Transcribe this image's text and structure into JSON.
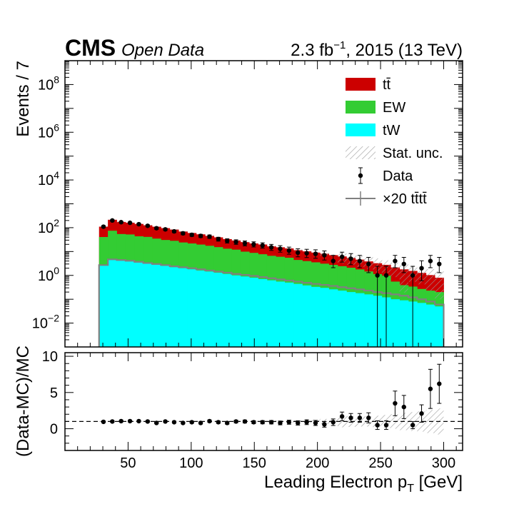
{
  "header": {
    "experiment": "CMS",
    "tag": "Open Data",
    "lumi": "2.3 fb",
    "lumi_sup": "−1",
    "lumi_rest": ", 2015 (13 TeV)"
  },
  "colors": {
    "ttbar": "#cc0000",
    "ew": "#33cc33",
    "tw": "#00ffff",
    "signal": "#808080",
    "data": "#000000",
    "hatch": "#aaaaaa"
  },
  "legend": {
    "placement": "top-right",
    "entries": [
      {
        "key": "ttbar",
        "label": "tt̄"
      },
      {
        "key": "ew",
        "label": "EW"
      },
      {
        "key": "tw",
        "label": "tW"
      },
      {
        "key": "stat",
        "label": "Stat. unc."
      },
      {
        "key": "data",
        "label": "Data"
      },
      {
        "key": "signal",
        "label": "×20 tt̄tt̄"
      }
    ]
  },
  "chart_data": [
    {
      "type": "bar",
      "stacked": true,
      "log_y": true,
      "xlabel": "Leading Electron p",
      "xlabel_sub": "T",
      "xlabel_unit": " [GeV]",
      "ylabel": "Events / 7",
      "xlim": [
        0,
        315
      ],
      "ylim": [
        0.001,
        1000000000.0
      ],
      "x_ticks": [
        50,
        100,
        150,
        200,
        250,
        300
      ],
      "y_ticks": [
        {
          "value": 0.01,
          "base": "10",
          "exp": "−2"
        },
        {
          "value": 1,
          "base": "10",
          "exp": "0"
        },
        {
          "value": 100,
          "base": "10",
          "exp": "2"
        },
        {
          "value": 10000,
          "base": "10",
          "exp": "4"
        },
        {
          "value": 1000000,
          "base": "10",
          "exp": "6"
        },
        {
          "value": 100000000,
          "base": "10",
          "exp": "8"
        }
      ],
      "bin_low": [
        27,
        34,
        41,
        48,
        55,
        62,
        69,
        76,
        83,
        90,
        97,
        104,
        111,
        118,
        125,
        132,
        139,
        146,
        153,
        160,
        167,
        174,
        181,
        188,
        195,
        202,
        209,
        216,
        223,
        230,
        237,
        244,
        251,
        258,
        265,
        272,
        279,
        286,
        293
      ],
      "bin_high": [
        34,
        41,
        48,
        55,
        62,
        69,
        76,
        83,
        90,
        97,
        104,
        111,
        118,
        125,
        132,
        139,
        146,
        153,
        160,
        167,
        174,
        181,
        188,
        195,
        202,
        209,
        216,
        223,
        230,
        237,
        244,
        251,
        258,
        265,
        272,
        279,
        286,
        293,
        300
      ],
      "series": [
        {
          "name": "tW",
          "key": "tw",
          "values": [
            2.6,
            4.5,
            4.2,
            3.9,
            3.5,
            3.1,
            2.8,
            2.5,
            2.2,
            2.0,
            1.8,
            1.6,
            1.45,
            1.3,
            1.15,
            1.0,
            0.9,
            0.8,
            0.7,
            0.62,
            0.55,
            0.5,
            0.44,
            0.38,
            0.33,
            0.3,
            0.26,
            0.23,
            0.2,
            0.18,
            0.16,
            0.14,
            0.12,
            0.1,
            0.09,
            0.08,
            0.07,
            0.06,
            0.05
          ]
        },
        {
          "name": "EW",
          "key": "ew",
          "values": [
            38,
            70,
            50,
            48,
            40,
            38,
            32,
            28,
            26,
            22,
            20,
            18,
            16,
            14,
            12,
            11,
            9,
            8,
            7,
            6,
            5.5,
            5,
            4,
            3.6,
            3.2,
            2.8,
            2.5,
            2.2,
            1.9,
            1.6,
            1.3,
            1.0,
            0.85,
            0.45,
            0.3,
            0.26,
            0.2,
            0.17,
            0.15
          ]
        },
        {
          "name": "tt̄",
          "key": "ttbar",
          "values": [
            70,
            140,
            120,
            110,
            100,
            85,
            75,
            65,
            55,
            45,
            38,
            33,
            28,
            24,
            20,
            17,
            15,
            13,
            12,
            10,
            9,
            8,
            7,
            6.2,
            5.5,
            5,
            4.3,
            3.8,
            3.3,
            2.8,
            2.4,
            2.1,
            1.8,
            1.6,
            1.4,
            1.2,
            1.0,
            0.8,
            0.6
          ]
        },
        {
          "name": "×20 tt̄tt̄",
          "key": "signal",
          "values": [
            2.7,
            4.7,
            4.4,
            4.1,
            3.7,
            3.3,
            3.0,
            2.7,
            2.4,
            2.2,
            2.0,
            1.8,
            1.6,
            1.45,
            1.3,
            1.15,
            1.05,
            0.95,
            0.85,
            0.76,
            0.68,
            0.61,
            0.55,
            0.49,
            0.44,
            0.4,
            0.36,
            0.32,
            0.29,
            0.26,
            0.23,
            0.2,
            0.18,
            0.16,
            0.14,
            0.12,
            0.1,
            0.08,
            0.06
          ]
        },
        {
          "name": "Data",
          "key": "data",
          "x": [
            30.5,
            37.5,
            44.5,
            51.5,
            58.5,
            65.5,
            72.5,
            79.5,
            86.5,
            93.5,
            100.5,
            107.5,
            114.5,
            121.5,
            128.5,
            135.5,
            142.5,
            149.5,
            156.5,
            163.5,
            170.5,
            177.5,
            184.5,
            191.5,
            198.5,
            205.5,
            212.5,
            219.5,
            226.5,
            233.5,
            240.5,
            247.5,
            254.5,
            261.5,
            268.5,
            275.5,
            282.5,
            289.5,
            296.5
          ],
          "values": [
            110,
            200,
            170,
            160,
            140,
            120,
            95,
            85,
            70,
            58,
            50,
            45,
            42,
            33,
            28,
            25,
            22,
            20,
            18,
            15,
            13,
            11,
            9,
            8.5,
            8,
            7,
            4,
            6,
            5,
            4,
            3,
            1,
            1,
            4,
            3,
            1,
            2,
            4,
            3
          ],
          "err_low": [
            10,
            14,
            13,
            12,
            12,
            11,
            10,
            9,
            8,
            7.5,
            7,
            6.5,
            6.5,
            5.7,
            5.3,
            5,
            4.7,
            4.5,
            4.2,
            3.9,
            3.6,
            3.3,
            3,
            2.9,
            2.8,
            2.6,
            1.9,
            2.4,
            2.2,
            1.9,
            1.7,
            0.999,
            0.999,
            1.9,
            1.7,
            0.999,
            1.4,
            1.9,
            1.7
          ],
          "err_high": [
            11,
            15,
            14,
            13,
            13,
            12,
            11,
            10,
            9,
            8.5,
            8,
            7.5,
            7.5,
            6.7,
            6.3,
            6,
            5.7,
            5.5,
            5.2,
            4.9,
            4.6,
            4.3,
            4,
            3.9,
            3.8,
            3.6,
            2.9,
            3.4,
            3.2,
            2.9,
            2.7,
            1.4,
            1.4,
            2.9,
            2.7,
            1.4,
            2.1,
            2.9,
            2.7
          ]
        }
      ],
      "stat_unc": [
        4,
        6,
        5,
        5,
        5,
        4,
        4,
        3,
        3,
        2.5,
        2.2,
        2,
        1.8,
        1.6,
        1.4,
        1.3,
        1.2,
        1.1,
        1,
        0.9,
        0.85,
        0.8,
        0.7,
        0.65,
        0.6,
        2.5,
        0.55,
        3.0,
        2.6,
        2.3,
        2.0,
        1.9,
        1.5,
        1.3,
        1.6,
        1.0,
        0.85,
        0.8,
        0.7
      ]
    },
    {
      "type": "scatter",
      "xlabel": "Leading Electron p",
      "ylabel": "(Data-MC)/MC",
      "xlim": [
        0,
        315
      ],
      "ylim": [
        -3,
        10.5
      ],
      "y_ticks": [
        0,
        5,
        10
      ],
      "reference_line": 1,
      "x": [
        30.5,
        37.5,
        44.5,
        51.5,
        58.5,
        65.5,
        72.5,
        79.5,
        86.5,
        93.5,
        100.5,
        107.5,
        114.5,
        121.5,
        128.5,
        135.5,
        142.5,
        149.5,
        156.5,
        163.5,
        170.5,
        177.5,
        184.5,
        191.5,
        198.5,
        205.5,
        212.5,
        219.5,
        226.5,
        233.5,
        240.5,
        247.5,
        254.5,
        261.5,
        268.5,
        275.5,
        282.5,
        289.5,
        296.5
      ],
      "values": [
        0.95,
        1.0,
        1.05,
        1.05,
        1.05,
        1.0,
        0.8,
        1.0,
        0.9,
        0.8,
        0.9,
        0.8,
        1.05,
        0.9,
        0.8,
        1.0,
        1.0,
        0.9,
        0.9,
        0.9,
        0.8,
        0.9,
        0.8,
        0.9,
        0.8,
        0.6,
        0.9,
        1.7,
        1.5,
        1.5,
        1.5,
        0.5,
        0.5,
        3.5,
        3.0,
        0.5,
        2.1,
        5.5,
        6.2
      ],
      "err": [
        0.1,
        0.1,
        0.1,
        0.1,
        0.1,
        0.1,
        0.1,
        0.1,
        0.1,
        0.12,
        0.13,
        0.14,
        0.15,
        0.16,
        0.17,
        0.18,
        0.2,
        0.2,
        0.22,
        0.24,
        0.26,
        0.28,
        0.3,
        0.33,
        0.35,
        0.38,
        0.45,
        0.6,
        0.6,
        0.6,
        0.7,
        0.6,
        0.6,
        1.7,
        1.6,
        0.5,
        1.2,
        2.7,
        2.7
      ],
      "band": [
        0.04,
        0.04,
        0.04,
        0.04,
        0.04,
        0.04,
        0.04,
        0.04,
        0.05,
        0.05,
        0.05,
        0.06,
        0.06,
        0.07,
        0.07,
        0.08,
        0.09,
        0.09,
        0.1,
        0.12,
        0.13,
        0.15,
        0.17,
        0.2,
        0.22,
        0.35,
        0.3,
        0.8,
        0.75,
        0.7,
        0.7,
        0.8,
        0.9,
        1.0,
        1.2,
        1.3,
        1.4,
        1.6,
        1.8
      ]
    }
  ]
}
